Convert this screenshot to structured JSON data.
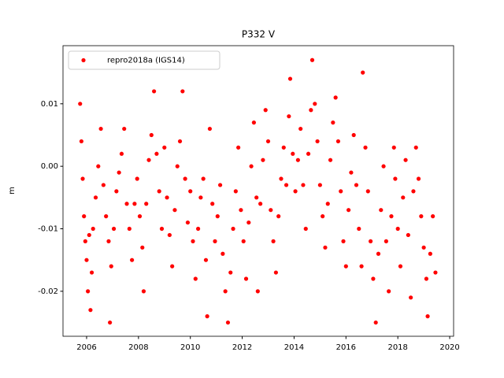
{
  "chart_data": {
    "type": "scatter",
    "title": "P332 V",
    "y_label": "m",
    "x": [
      2005.75,
      2005.8,
      2005.85,
      2005.9,
      2005.95,
      2006.0,
      2006.05,
      2006.1,
      2006.15,
      2006.2,
      2006.25,
      2006.35,
      2006.45,
      2006.55,
      2006.65,
      2006.75,
      2006.85,
      2006.9,
      2006.95,
      2007.05,
      2007.15,
      2007.25,
      2007.35,
      2007.45,
      2007.55,
      2007.65,
      2007.75,
      2007.85,
      2007.95,
      2008.05,
      2008.15,
      2008.2,
      2008.3,
      2008.4,
      2008.5,
      2008.6,
      2008.7,
      2008.8,
      2008.9,
      2009.0,
      2009.1,
      2009.2,
      2009.3,
      2009.4,
      2009.5,
      2009.6,
      2009.7,
      2009.8,
      2009.9,
      2010.0,
      2010.1,
      2010.2,
      2010.3,
      2010.4,
      2010.5,
      2010.6,
      2010.65,
      2010.75,
      2010.85,
      2010.95,
      2011.05,
      2011.15,
      2011.25,
      2011.35,
      2011.45,
      2011.55,
      2011.65,
      2011.75,
      2011.85,
      2011.95,
      2012.05,
      2012.15,
      2012.25,
      2012.35,
      2012.45,
      2012.55,
      2012.6,
      2012.7,
      2012.8,
      2012.9,
      2013.0,
      2013.1,
      2013.2,
      2013.3,
      2013.4,
      2013.5,
      2013.6,
      2013.7,
      2013.8,
      2013.85,
      2013.95,
      2014.05,
      2014.15,
      2014.25,
      2014.35,
      2014.45,
      2014.55,
      2014.65,
      2014.7,
      2014.8,
      2014.9,
      2015.0,
      2015.1,
      2015.2,
      2015.3,
      2015.4,
      2015.5,
      2015.6,
      2015.7,
      2015.8,
      2015.9,
      2016.0,
      2016.1,
      2016.2,
      2016.3,
      2016.4,
      2016.5,
      2016.6,
      2016.65,
      2016.75,
      2016.85,
      2016.95,
      2017.05,
      2017.15,
      2017.25,
      2017.35,
      2017.45,
      2017.55,
      2017.65,
      2017.75,
      2017.85,
      2017.9,
      2018.0,
      2018.1,
      2018.2,
      2018.3,
      2018.4,
      2018.5,
      2018.6,
      2018.7,
      2018.8,
      2018.9,
      2019.0,
      2019.1,
      2019.15,
      2019.25,
      2019.35,
      2019.45
    ],
    "series": [
      {
        "name": "repro2018a (IGS14)",
        "color": "#ff0000",
        "values": [
          0.01,
          0.004,
          -0.002,
          -0.008,
          -0.012,
          -0.015,
          -0.02,
          -0.011,
          -0.023,
          -0.017,
          -0.01,
          -0.005,
          0.0,
          0.006,
          -0.003,
          -0.008,
          -0.012,
          -0.025,
          -0.016,
          -0.01,
          -0.004,
          -0.001,
          0.002,
          0.006,
          -0.006,
          -0.01,
          -0.015,
          -0.006,
          -0.002,
          -0.008,
          -0.013,
          -0.02,
          -0.006,
          0.001,
          0.005,
          0.012,
          0.002,
          -0.004,
          -0.01,
          0.003,
          -0.005,
          -0.011,
          -0.016,
          -0.007,
          0.0,
          0.004,
          0.012,
          -0.002,
          -0.009,
          -0.004,
          -0.012,
          -0.018,
          -0.01,
          -0.005,
          -0.002,
          -0.015,
          -0.024,
          0.006,
          -0.006,
          -0.012,
          -0.008,
          -0.003,
          -0.014,
          -0.02,
          -0.025,
          -0.017,
          -0.01,
          -0.004,
          0.003,
          -0.007,
          -0.012,
          -0.018,
          -0.009,
          0.0,
          0.007,
          -0.005,
          -0.02,
          -0.006,
          0.001,
          0.009,
          0.004,
          -0.007,
          -0.012,
          -0.017,
          -0.008,
          -0.002,
          0.003,
          -0.003,
          0.008,
          0.014,
          0.002,
          -0.004,
          0.001,
          0.006,
          -0.003,
          -0.01,
          0.002,
          0.009,
          0.017,
          0.01,
          0.004,
          -0.003,
          -0.008,
          -0.013,
          -0.006,
          0.001,
          0.007,
          0.011,
          0.004,
          -0.004,
          -0.012,
          -0.016,
          -0.007,
          -0.001,
          0.005,
          -0.003,
          -0.01,
          -0.016,
          0.015,
          0.003,
          -0.004,
          -0.012,
          -0.018,
          -0.025,
          -0.014,
          -0.007,
          0.0,
          -0.012,
          -0.02,
          -0.008,
          0.003,
          -0.002,
          -0.01,
          -0.016,
          -0.005,
          0.001,
          -0.011,
          -0.021,
          -0.004,
          0.003,
          -0.002,
          -0.008,
          -0.013,
          -0.018,
          -0.024,
          -0.014,
          -0.008,
          -0.017
        ]
      }
    ],
    "xlim": [
      2005.09,
      2020.15
    ],
    "ylim": [
      -0.0272,
      0.0193
    ],
    "xticks": [
      2006,
      2008,
      2010,
      2012,
      2014,
      2016,
      2018,
      2020
    ],
    "yticks": [
      {
        "value": -0.02,
        "label": "-0.02"
      },
      {
        "value": -0.01,
        "label": "-0.01"
      },
      {
        "value": 0,
        "label": "0.00"
      },
      {
        "value": 0.01,
        "label": "0.01"
      }
    ],
    "grid": false,
    "legend": "upper left"
  }
}
